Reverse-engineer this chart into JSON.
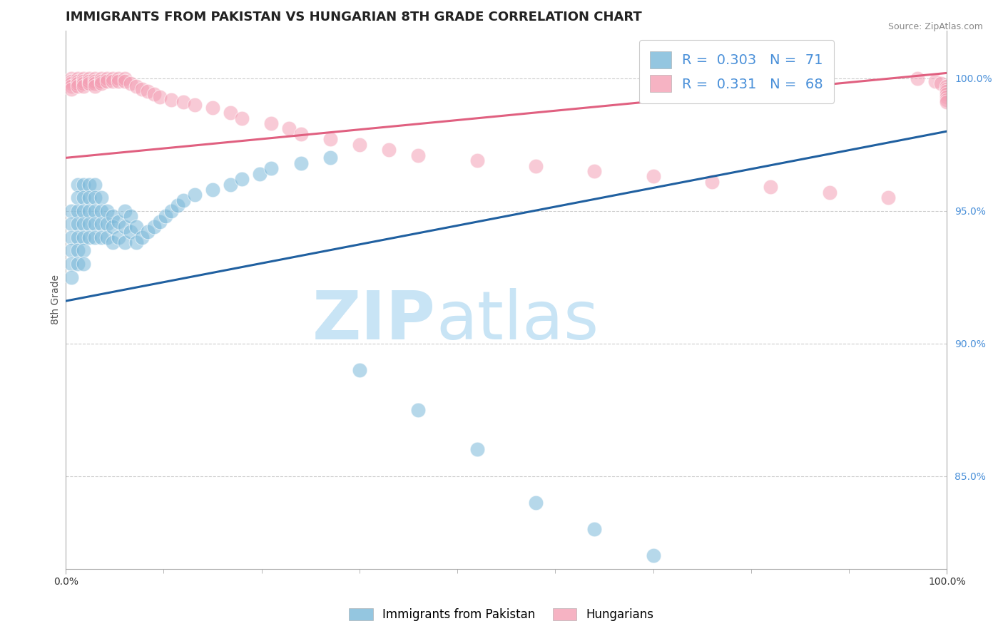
{
  "title": "IMMIGRANTS FROM PAKISTAN VS HUNGARIAN 8TH GRADE CORRELATION CHART",
  "source_text": "Source: ZipAtlas.com",
  "ylabel": "8th Grade",
  "right_ytick_labels": [
    "100.0%",
    "95.0%",
    "90.0%",
    "85.0%"
  ],
  "right_ytick_values": [
    1.0,
    0.95,
    0.9,
    0.85
  ],
  "xmin": 0.0,
  "xmax": 0.15,
  "ymin": 0.815,
  "ymax": 1.018,
  "blue_R": 0.303,
  "blue_N": 71,
  "pink_R": 0.331,
  "pink_N": 68,
  "blue_color": "#7ab8d9",
  "pink_color": "#f4a0b5",
  "blue_line_color": "#2060a0",
  "pink_line_color": "#e06080",
  "legend_blue_label": "Immigrants from Pakistan",
  "legend_pink_label": "Hungarians",
  "watermark_zip": "ZIP",
  "watermark_atlas": "atlas",
  "watermark_color": "#c8e4f5",
  "background_color": "#ffffff",
  "grid_color": "#cccccc",
  "title_fontsize": 13,
  "axis_label_fontsize": 10,
  "tick_fontsize": 10,
  "blue_line_x0": 0.0,
  "blue_line_x1": 0.15,
  "blue_line_y0": 0.916,
  "blue_line_y1": 0.98,
  "pink_line_x0": 0.0,
  "pink_line_x1": 0.15,
  "pink_line_y0": 0.97,
  "pink_line_y1": 1.002,
  "blue_scatter_x": [
    0.001,
    0.001,
    0.001,
    0.001,
    0.001,
    0.001,
    0.002,
    0.002,
    0.002,
    0.002,
    0.002,
    0.002,
    0.002,
    0.003,
    0.003,
    0.003,
    0.003,
    0.003,
    0.003,
    0.003,
    0.004,
    0.004,
    0.004,
    0.004,
    0.004,
    0.005,
    0.005,
    0.005,
    0.005,
    0.005,
    0.006,
    0.006,
    0.006,
    0.006,
    0.007,
    0.007,
    0.007,
    0.008,
    0.008,
    0.008,
    0.009,
    0.009,
    0.01,
    0.01,
    0.01,
    0.011,
    0.011,
    0.012,
    0.012,
    0.013,
    0.014,
    0.015,
    0.016,
    0.017,
    0.018,
    0.019,
    0.02,
    0.022,
    0.025,
    0.028,
    0.03,
    0.033,
    0.035,
    0.04,
    0.045,
    0.05,
    0.06,
    0.07,
    0.08,
    0.09,
    0.1
  ],
  "blue_scatter_y": [
    0.95,
    0.945,
    0.94,
    0.935,
    0.93,
    0.925,
    0.96,
    0.955,
    0.95,
    0.945,
    0.94,
    0.935,
    0.93,
    0.96,
    0.955,
    0.95,
    0.945,
    0.94,
    0.935,
    0.93,
    0.96,
    0.955,
    0.95,
    0.945,
    0.94,
    0.96,
    0.955,
    0.95,
    0.945,
    0.94,
    0.955,
    0.95,
    0.945,
    0.94,
    0.95,
    0.945,
    0.94,
    0.948,
    0.944,
    0.938,
    0.946,
    0.94,
    0.95,
    0.944,
    0.938,
    0.948,
    0.942,
    0.944,
    0.938,
    0.94,
    0.942,
    0.944,
    0.946,
    0.948,
    0.95,
    0.952,
    0.954,
    0.956,
    0.958,
    0.96,
    0.962,
    0.964,
    0.966,
    0.968,
    0.97,
    0.89,
    0.875,
    0.86,
    0.84,
    0.83,
    0.82
  ],
  "pink_scatter_x": [
    0.001,
    0.001,
    0.001,
    0.001,
    0.001,
    0.002,
    0.002,
    0.002,
    0.002,
    0.003,
    0.003,
    0.003,
    0.003,
    0.004,
    0.004,
    0.004,
    0.005,
    0.005,
    0.005,
    0.005,
    0.006,
    0.006,
    0.006,
    0.007,
    0.007,
    0.008,
    0.008,
    0.009,
    0.009,
    0.01,
    0.01,
    0.011,
    0.012,
    0.013,
    0.014,
    0.015,
    0.016,
    0.018,
    0.02,
    0.022,
    0.025,
    0.028,
    0.03,
    0.035,
    0.038,
    0.04,
    0.045,
    0.05,
    0.055,
    0.06,
    0.07,
    0.08,
    0.09,
    0.1,
    0.11,
    0.12,
    0.13,
    0.14,
    0.145,
    0.148,
    0.149,
    0.15,
    0.15,
    0.15,
    0.15,
    0.15,
    0.15,
    0.15
  ],
  "pink_scatter_y": [
    1.0,
    0.999,
    0.998,
    0.997,
    0.996,
    1.0,
    0.999,
    0.998,
    0.997,
    1.0,
    0.999,
    0.998,
    0.997,
    1.0,
    0.999,
    0.998,
    1.0,
    0.999,
    0.998,
    0.997,
    1.0,
    0.999,
    0.998,
    1.0,
    0.999,
    1.0,
    0.999,
    1.0,
    0.999,
    1.0,
    0.999,
    0.998,
    0.997,
    0.996,
    0.995,
    0.994,
    0.993,
    0.992,
    0.991,
    0.99,
    0.989,
    0.987,
    0.985,
    0.983,
    0.981,
    0.979,
    0.977,
    0.975,
    0.973,
    0.971,
    0.969,
    0.967,
    0.965,
    0.963,
    0.961,
    0.959,
    0.957,
    0.955,
    1.0,
    0.999,
    0.998,
    0.997,
    0.996,
    0.995,
    0.994,
    0.993,
    0.992,
    0.991
  ]
}
